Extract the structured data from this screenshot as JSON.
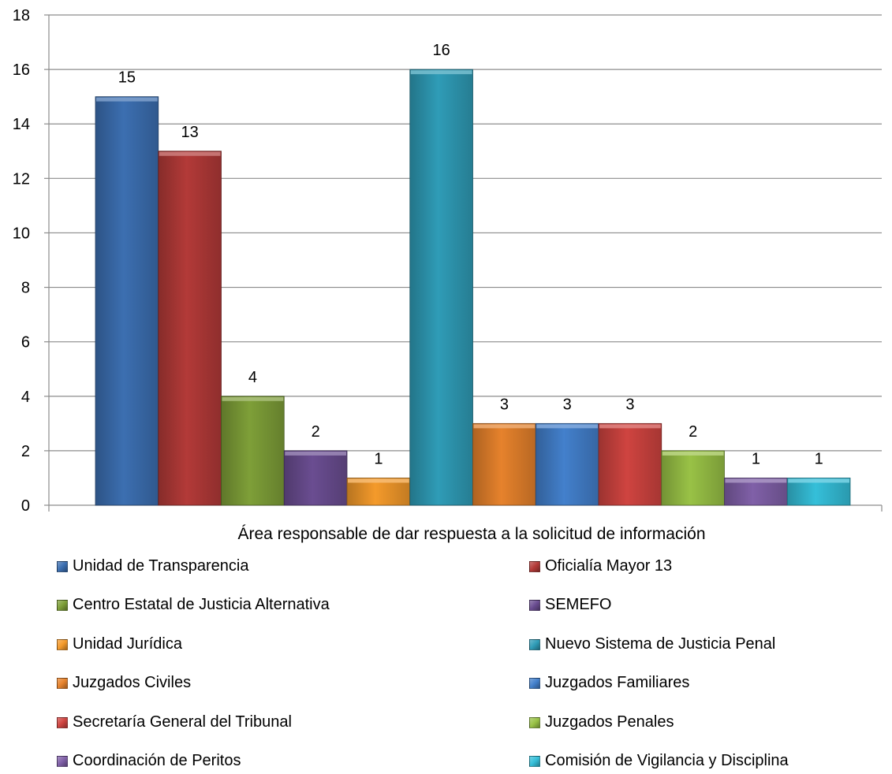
{
  "chart_data": {
    "type": "bar",
    "xlabel": "Área responsable de dar respuesta a la solicitud de información",
    "ylabel": "",
    "ylim": [
      0,
      18
    ],
    "yticks": [
      "0",
      "2",
      "4",
      "6",
      "8",
      "10",
      "12",
      "14",
      "16",
      "18"
    ],
    "grid": true,
    "legend_position": "bottom",
    "series": [
      {
        "name": "Unidad de Transparencia",
        "value": 15,
        "color": "#3c6fb1"
      },
      {
        "name": "Oficialía Mayor 13",
        "value": 13,
        "color": "#b33a38"
      },
      {
        "name": "Centro Estatal de Justicia Alternativa",
        "value": 4,
        "color": "#7e9f38"
      },
      {
        "name": "SEMEFO",
        "value": 2,
        "color": "#6a4d91"
      },
      {
        "name": "Unidad Jurídica",
        "value": 1,
        "color": "#f49a2b"
      },
      {
        "name": "Nuevo Sistema de Justicia Penal",
        "value": 16,
        "color": "#2f9cb7"
      },
      {
        "name": "Juzgados Civiles",
        "value": 3,
        "color": "#e6822c"
      },
      {
        "name": "Juzgados Familiares",
        "value": 3,
        "color": "#4380cc"
      },
      {
        "name": "Secretaría General del Tribunal",
        "value": 3,
        "color": "#cf4440"
      },
      {
        "name": "Juzgados Penales",
        "value": 2,
        "color": "#99c246"
      },
      {
        "name": "Coordinación de Peritos",
        "value": 1,
        "color": "#8060a8"
      },
      {
        "name": "Comisión de Vigilancia y Disciplina",
        "value": 1,
        "color": "#35bfd9"
      }
    ],
    "data_labels": [
      "15",
      "13",
      "4",
      "2",
      "1",
      "16",
      "3",
      "3",
      "3",
      "2",
      "1",
      "1"
    ]
  }
}
